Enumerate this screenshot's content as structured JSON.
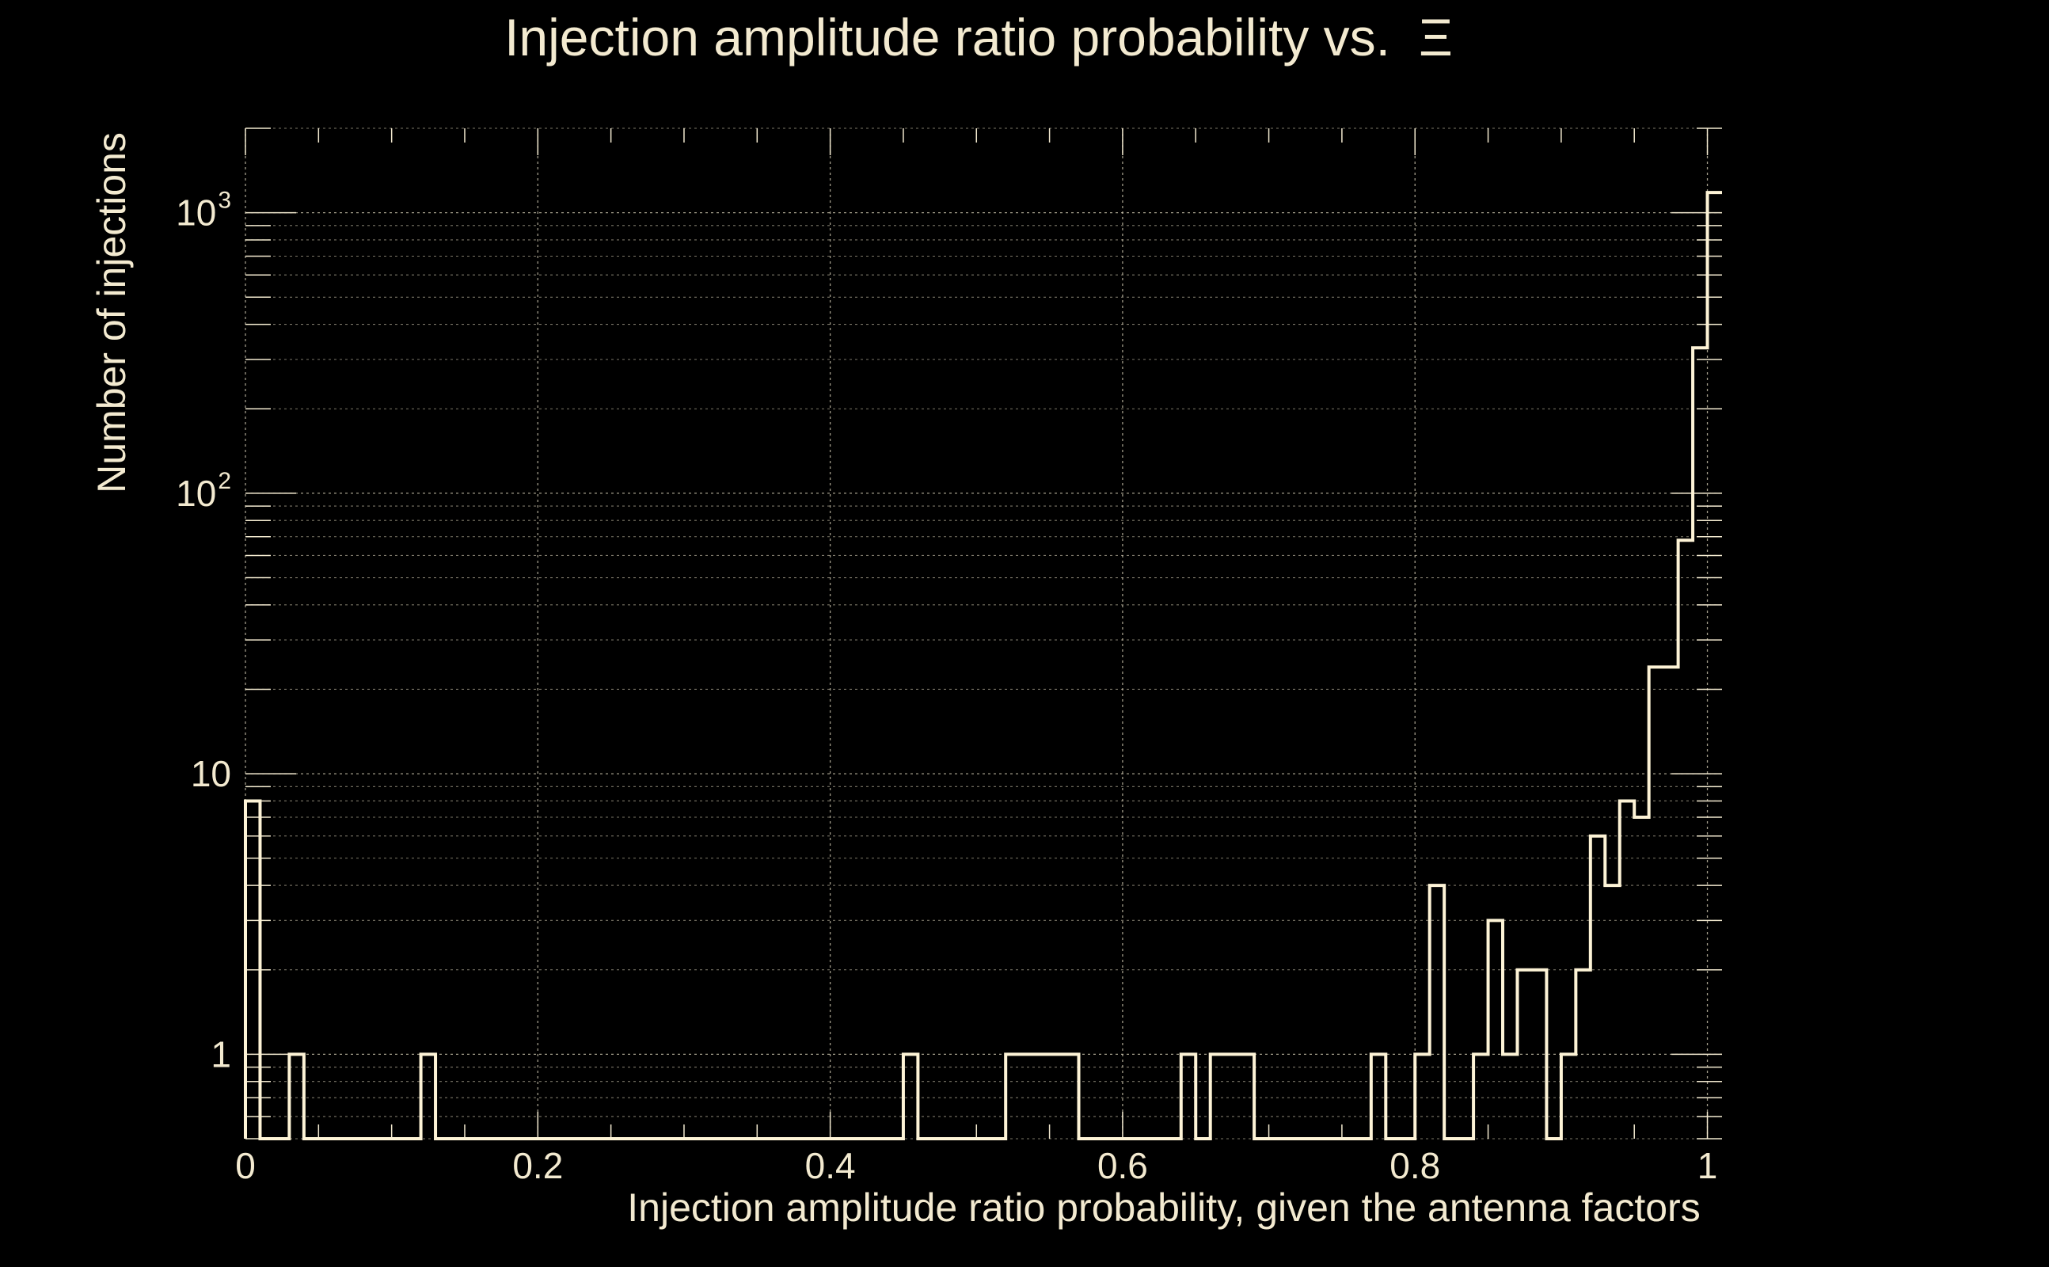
{
  "chart_data": {
    "type": "histogram",
    "title": "Injection amplitude ratio probability vs.",
    "title_symbol": "Ξ",
    "xlabel": "Injection amplitude ratio probability, given the antenna factors",
    "ylabel": "Number of injections",
    "xlim": [
      0,
      1.01
    ],
    "ylim": [
      0.5,
      2000
    ],
    "y_scale": "log",
    "grid": true,
    "colors": {
      "background": "#000000",
      "foreground": "#f3ead0",
      "line": "#fdf3d6"
    },
    "x_ticks": [
      {
        "value": 0,
        "label": "0"
      },
      {
        "value": 0.2,
        "label": "0.2"
      },
      {
        "value": 0.4,
        "label": "0.4"
      },
      {
        "value": 0.6,
        "label": "0.6"
      },
      {
        "value": 0.8,
        "label": "0.8"
      },
      {
        "value": 1,
        "label": "1"
      }
    ],
    "y_ticks": [
      {
        "value": 1,
        "base": "1",
        "sup": ""
      },
      {
        "value": 10,
        "base": "10",
        "sup": ""
      },
      {
        "value": 100,
        "base": "10",
        "sup": "2"
      },
      {
        "value": 1000,
        "base": "10",
        "sup": "3"
      }
    ],
    "bin_width": 0.01,
    "bins": [
      {
        "x": 0.0,
        "count": 8
      },
      {
        "x": 0.03,
        "count": 1
      },
      {
        "x": 0.12,
        "count": 1
      },
      {
        "x": 0.45,
        "count": 1
      },
      {
        "x": 0.52,
        "count": 1
      },
      {
        "x": 0.53,
        "count": 1
      },
      {
        "x": 0.54,
        "count": 1
      },
      {
        "x": 0.55,
        "count": 1
      },
      {
        "x": 0.56,
        "count": 1
      },
      {
        "x": 0.64,
        "count": 1
      },
      {
        "x": 0.66,
        "count": 1
      },
      {
        "x": 0.67,
        "count": 1
      },
      {
        "x": 0.68,
        "count": 1
      },
      {
        "x": 0.77,
        "count": 1
      },
      {
        "x": 0.8,
        "count": 1
      },
      {
        "x": 0.81,
        "count": 4
      },
      {
        "x": 0.84,
        "count": 1
      },
      {
        "x": 0.85,
        "count": 3
      },
      {
        "x": 0.86,
        "count": 1
      },
      {
        "x": 0.87,
        "count": 2
      },
      {
        "x": 0.88,
        "count": 2
      },
      {
        "x": 0.9,
        "count": 1
      },
      {
        "x": 0.91,
        "count": 2
      },
      {
        "x": 0.92,
        "count": 6
      },
      {
        "x": 0.93,
        "count": 4
      },
      {
        "x": 0.94,
        "count": 8
      },
      {
        "x": 0.95,
        "count": 7
      },
      {
        "x": 0.96,
        "count": 24
      },
      {
        "x": 0.97,
        "count": 24
      },
      {
        "x": 0.98,
        "count": 68
      },
      {
        "x": 0.99,
        "count": 330
      },
      {
        "x": 1.0,
        "count": 1180
      }
    ]
  }
}
